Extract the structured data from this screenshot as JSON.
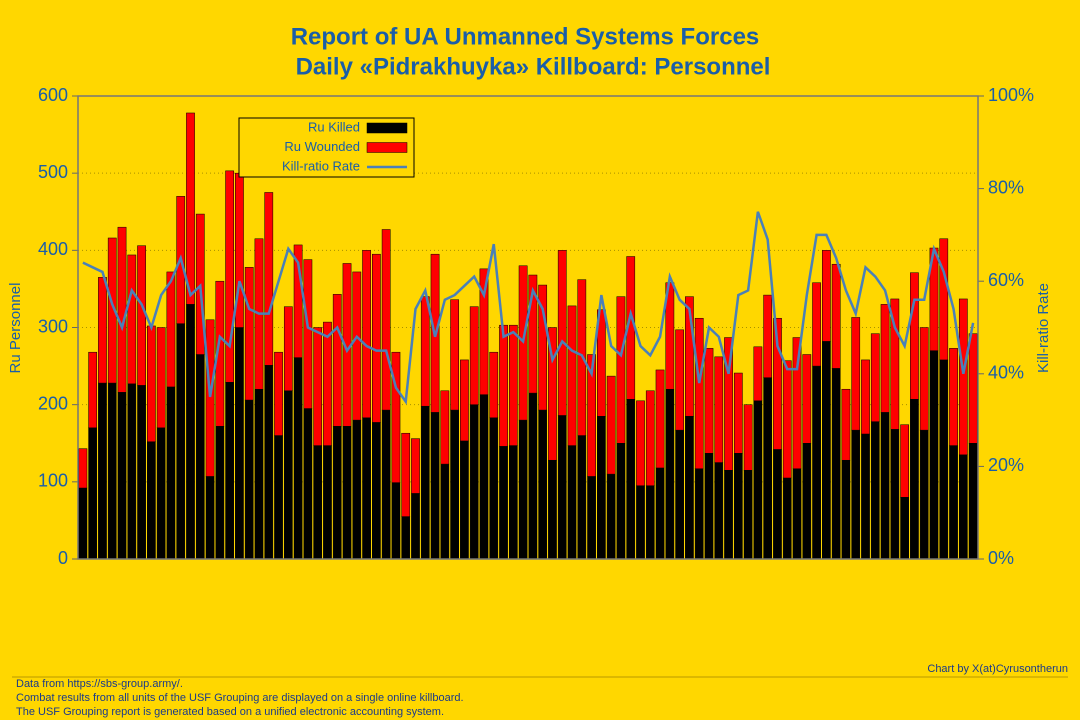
{
  "chart_data": {
    "type": "bar",
    "title": "Report of UA Unmanned Systems Forces",
    "subtitle": "Daily «Pidrakhuyka» Killboard: Personnel",
    "ylabel": "Ru Personnel",
    "y2label": "Kill-ratio Rate",
    "stacked": true,
    "categories": [
      null,
      null,
      null,
      null,
      null,
      null,
      null,
      null,
      null,
      null,
      null,
      null,
      null,
      null,
      null,
      null,
      null,
      null,
      null,
      null,
      null,
      null,
      null,
      null,
      null,
      null,
      null,
      null,
      null,
      null,
      null,
      null,
      null,
      null,
      null,
      null,
      null,
      null,
      null,
      null,
      null,
      null,
      null,
      null,
      null,
      null,
      null,
      null,
      null,
      null,
      null,
      null,
      null,
      null,
      null,
      null,
      null,
      null,
      null,
      null,
      null,
      null,
      null,
      null,
      null,
      null,
      null,
      null,
      null,
      null,
      null,
      null,
      null,
      null,
      null,
      null,
      null,
      null,
      null,
      null,
      null,
      null,
      null,
      null,
      null,
      null,
      null,
      null,
      null,
      null,
      null,
      null
    ],
    "series": [
      {
        "name": "Ru Killed",
        "type": "bar",
        "color": "#000000",
        "values": [
          92,
          170,
          228,
          228,
          216,
          227,
          225,
          152,
          170,
          223,
          305,
          330,
          265,
          107,
          172,
          229,
          300,
          206,
          220,
          251,
          160,
          218,
          261,
          195,
          147,
          147,
          172,
          172,
          180,
          183,
          177,
          193,
          99,
          55,
          85,
          198,
          190,
          123,
          193,
          153,
          200,
          213,
          183,
          146,
          147,
          180,
          215,
          193,
          128,
          186,
          147,
          160,
          107,
          185,
          110,
          150,
          207,
          95,
          95,
          118,
          220,
          167,
          185,
          117,
          137,
          125,
          115,
          137,
          115,
          205,
          235,
          142,
          105,
          117,
          150,
          250,
          282,
          247,
          128,
          167,
          162,
          178,
          190,
          168,
          80,
          207,
          167,
          270,
          258,
          147,
          135,
          150
        ]
      },
      {
        "name": "Ru Wounded",
        "type": "bar",
        "color": "#ff0000",
        "values": [
          51,
          98,
          137,
          188,
          214,
          167,
          181,
          150,
          130,
          149,
          165,
          248,
          182,
          203,
          188,
          274,
          200,
          172,
          195,
          224,
          108,
          109,
          146,
          193,
          153,
          160,
          171,
          211,
          192,
          217,
          218,
          234,
          169,
          108,
          71,
          142,
          205,
          95,
          143,
          105,
          127,
          163,
          85,
          157,
          156,
          200,
          153,
          162,
          172,
          214,
          181,
          202,
          158,
          138,
          127,
          190,
          185,
          110,
          123,
          127,
          138,
          130,
          155,
          195,
          136,
          137,
          172,
          104,
          85,
          70,
          107,
          170,
          152,
          170,
          115,
          108,
          118,
          135,
          92,
          146,
          96,
          114,
          140,
          169,
          94,
          164,
          133,
          133,
          157,
          126,
          202,
          142
        ]
      },
      {
        "name": "Kill-ratio Rate",
        "type": "line",
        "axis": "y2",
        "color": "#4a80b8",
        "values": [
          64,
          63,
          62,
          55,
          50,
          58,
          55,
          50,
          57,
          60,
          65,
          57,
          59,
          35,
          48,
          46,
          60,
          54,
          53,
          53,
          60,
          67,
          64,
          50,
          49,
          48,
          50,
          45,
          48,
          46,
          45,
          45,
          37,
          34,
          54,
          58,
          48,
          56,
          57,
          59,
          61,
          57,
          68,
          48,
          49,
          47,
          58,
          54,
          43,
          47,
          45,
          44,
          40,
          57,
          46,
          44,
          53,
          46,
          44,
          48,
          61,
          56,
          54,
          38,
          50,
          48,
          40,
          57,
          58,
          75,
          69,
          46,
          41,
          41,
          57,
          70,
          70,
          65,
          58,
          53,
          63,
          61,
          58,
          50,
          46,
          56,
          56,
          67,
          62,
          54,
          40,
          51
        ]
      }
    ],
    "ylim": [
      0,
      600
    ],
    "yticks": [
      0,
      100,
      200,
      300,
      400,
      500,
      600
    ],
    "y2lim": [
      0,
      100
    ],
    "y2ticks": [
      {
        "value": 0,
        "label": "0%"
      },
      {
        "value": 20,
        "label": "20%"
      },
      {
        "value": 40,
        "label": "40%"
      },
      {
        "value": 60,
        "label": "60%"
      },
      {
        "value": 80,
        "label": "80%"
      },
      {
        "value": 100,
        "label": "100%"
      }
    ],
    "grid": true,
    "legend": "upper left",
    "credit": "Chart by X(at)Cyrusontherun",
    "notes": [
      "Data from https://sbs-group.army/.",
      "Combat results from all units of the USF Grouping are displayed on a single online killboard.",
      "The USF Grouping report is generated based on a unified electronic accounting system."
    ]
  }
}
